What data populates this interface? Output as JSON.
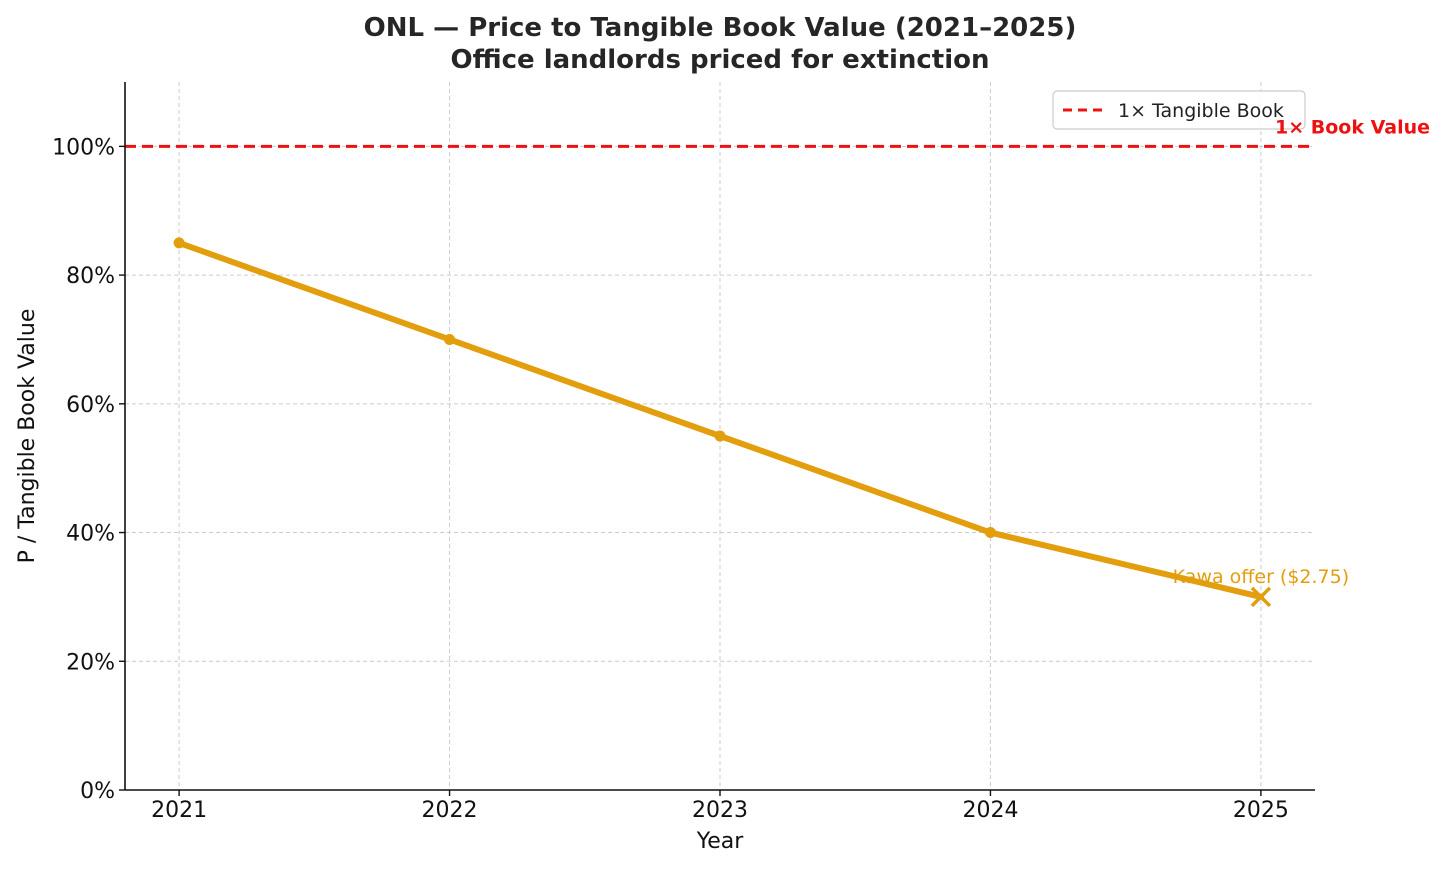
{
  "colors": {
    "series": "#E39E0E",
    "reference": "#EE1111",
    "annotation": "#E39E0E",
    "grid": "#cccccc",
    "axis": "#111111"
  },
  "chart_data": {
    "type": "line",
    "title": "ONL — Price to Tangible Book Value (2021–2025)",
    "subtitle": "Office landlords priced for extinction",
    "xlabel": "Year",
    "ylabel": "P / Tangible Book Value",
    "ylim": [
      0,
      1.1
    ],
    "yticks": [
      0,
      0.2,
      0.4,
      0.6,
      0.8,
      1.0
    ],
    "ytick_labels": [
      "0%",
      "20%",
      "40%",
      "60%",
      "80%",
      "100%"
    ],
    "x": [
      2021,
      2022,
      2023,
      2024,
      2025
    ],
    "x_labels": [
      "2021",
      "2022",
      "2023",
      "2024",
      "2025"
    ],
    "grid": true,
    "legend_position": "top-right",
    "series": [
      {
        "name": "P / Tangible Book Value",
        "values": [
          0.85,
          0.7,
          0.55,
          0.4,
          0.3
        ]
      }
    ],
    "reference_line": {
      "value": 1.0,
      "legend_label": "1× Tangible Book",
      "label": "1× Book Value"
    },
    "annotation": {
      "x": 2025,
      "y": 0.3,
      "text": "Kawa offer ($2.75)",
      "marker": "x"
    }
  }
}
